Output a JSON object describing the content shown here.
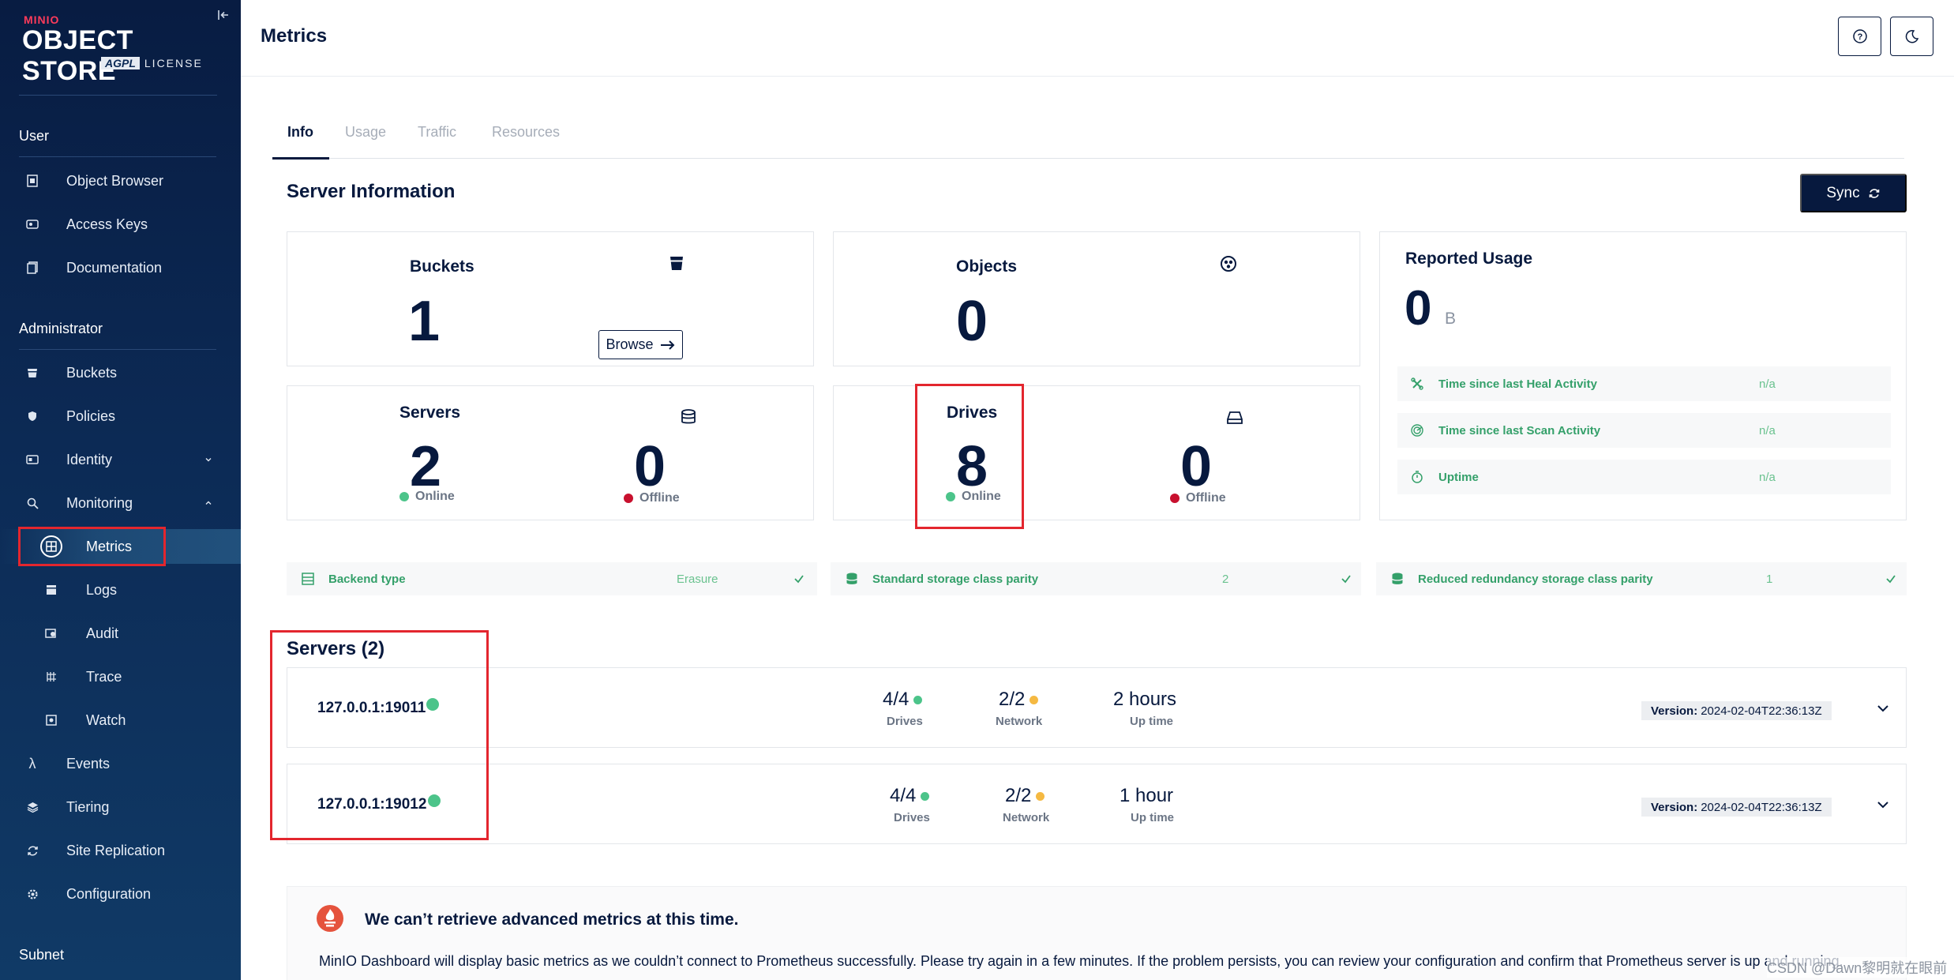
{
  "brand": {
    "small": "MINIO",
    "big": "OBJECT STORE",
    "agpl": "AGPL",
    "license": "LICENSE"
  },
  "sidebar": {
    "sections": {
      "user": "User",
      "administrator": "Administrator",
      "subnet": "Subnet"
    },
    "user_items": [
      {
        "label": "Object Browser",
        "icon": "object-browser-icon"
      },
      {
        "label": "Access Keys",
        "icon": "access-keys-icon"
      },
      {
        "label": "Documentation",
        "icon": "documentation-icon"
      }
    ],
    "admin_items": [
      {
        "label": "Buckets",
        "icon": "bucket-icon"
      },
      {
        "label": "Policies",
        "icon": "policy-icon"
      },
      {
        "label": "Identity",
        "icon": "identity-icon"
      },
      {
        "label": "Monitoring",
        "icon": "monitoring-icon"
      },
      {
        "label": "Metrics",
        "icon": "metrics-icon"
      },
      {
        "label": "Logs",
        "icon": "logs-icon"
      },
      {
        "label": "Audit",
        "icon": "audit-icon"
      },
      {
        "label": "Trace",
        "icon": "trace-icon"
      },
      {
        "label": "Watch",
        "icon": "watch-icon"
      },
      {
        "label": "Events",
        "icon": "lambda-icon"
      },
      {
        "label": "Tiering",
        "icon": "tiering-icon"
      },
      {
        "label": "Site Replication",
        "icon": "site-replication-icon"
      },
      {
        "label": "Configuration",
        "icon": "gear-icon"
      }
    ]
  },
  "header": {
    "title": "Metrics"
  },
  "tabs": [
    "Info",
    "Usage",
    "Traffic",
    "Resources"
  ],
  "server_info": {
    "title": "Server Information",
    "sync_label": "Sync",
    "buckets": {
      "label": "Buckets",
      "value": "1",
      "browse_label": "Browse"
    },
    "objects": {
      "label": "Objects",
      "value": "0"
    },
    "reported_usage": {
      "label": "Reported Usage",
      "value": "0",
      "unit": "B"
    },
    "servers": {
      "label": "Servers",
      "online_value": "2",
      "online_label": "Online",
      "offline_value": "0",
      "offline_label": "Offline"
    },
    "drives": {
      "label": "Drives",
      "online_value": "8",
      "online_label": "Online",
      "offline_value": "0",
      "offline_label": "Offline"
    },
    "usage_rows": [
      {
        "label": "Time since last Heal Activity",
        "value": "n/a"
      },
      {
        "label": "Time since last Scan Activity",
        "value": "n/a"
      },
      {
        "label": "Uptime",
        "value": "n/a"
      }
    ],
    "info_rows": [
      {
        "label": "Backend type",
        "value": "Erasure"
      },
      {
        "label": "Standard storage class parity",
        "value": "2"
      },
      {
        "label": "Reduced redundancy storage class parity",
        "value": "1"
      }
    ]
  },
  "servers_list": {
    "title": "Servers (2)",
    "rows": [
      {
        "name": "127.0.0.1:19011",
        "drives": "4/4",
        "drives_label": "Drives",
        "network": "2/2",
        "network_label": "Network",
        "uptime": "2 hours",
        "uptime_label": "Up time",
        "version_label": "Version:",
        "version": "2024-02-04T22:36:13Z"
      },
      {
        "name": "127.0.0.1:19012",
        "drives": "4/4",
        "drives_label": "Drives",
        "network": "2/2",
        "network_label": "Network",
        "uptime": "1 hour",
        "uptime_label": "Up time",
        "version_label": "Version:",
        "version": "2024-02-04T22:36:13Z"
      }
    ]
  },
  "alert": {
    "title": "We can’t retrieve advanced metrics at this time.",
    "text": "MinIO Dashboard will display basic metrics as we couldn’t connect to Prometheus successfully. Please try again in a few minutes. If the problem persists, you can review your configuration and confirm that Prometheus server is up and running."
  },
  "watermark": "CSDN @Dawn黎明就在眼前",
  "colors": {
    "sidebar_top": "#081c42",
    "sidebar_bottom": "#103a66",
    "navy": "#07193e",
    "online": "#4cc48a",
    "offline": "#c8102e",
    "warning": "#f5b942",
    "highlight_box": "#e3262e",
    "label_green": "#34a06a"
  }
}
